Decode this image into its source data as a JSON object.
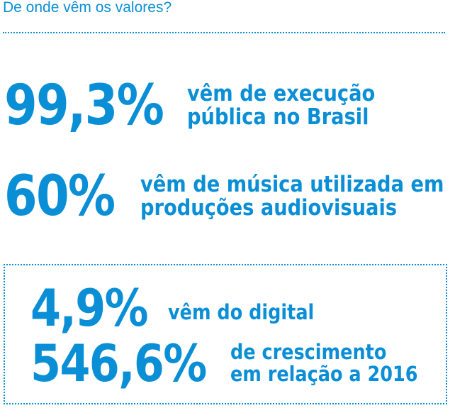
{
  "heading": "De onde vêm os valores?",
  "stats": [
    {
      "value": "99,3%",
      "line1": "vêm de execução",
      "line2": "pública no Brasil"
    },
    {
      "value": "60%",
      "line1": "vêm de música utilizada em",
      "line2": "produções audiovisuais"
    }
  ],
  "highlight": [
    {
      "value": "4,9%",
      "line1": "vêm do digital",
      "line2": ""
    },
    {
      "value": "546,6%",
      "line1": "de crescimento",
      "line2": "em relação a 2016"
    }
  ],
  "colors": {
    "accent": "#0a8fd6",
    "background": "#ffffff"
  }
}
